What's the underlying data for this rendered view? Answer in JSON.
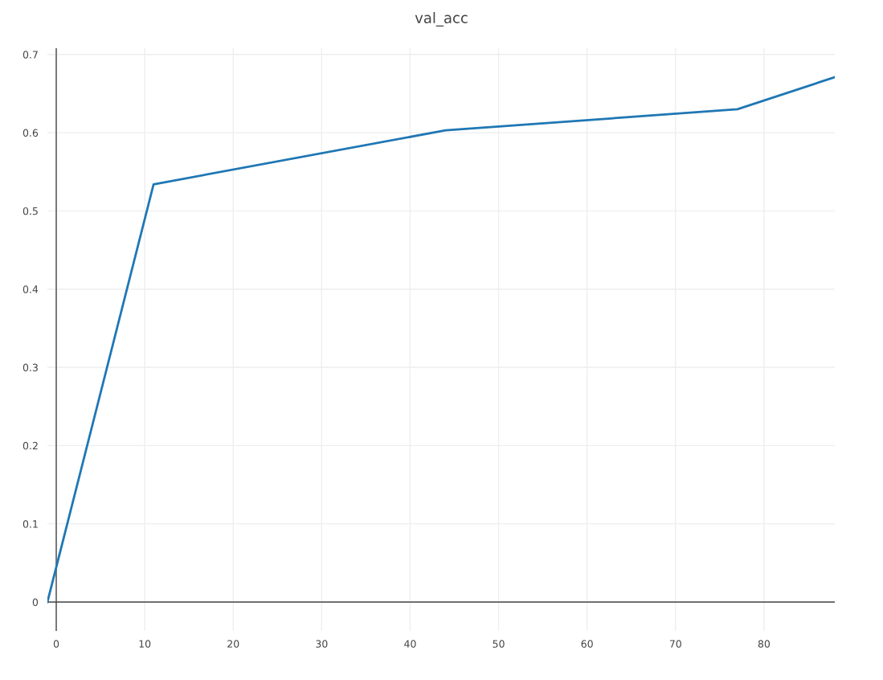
{
  "chart_data": {
    "type": "line",
    "title": "val_acc",
    "x": [
      -1,
      11,
      44,
      77,
      88
    ],
    "series": [
      {
        "color": "#1f77b4",
        "values": [
          0,
          0.534,
          0.603,
          0.63,
          0.671
        ]
      }
    ],
    "xlim": [
      -1,
      88
    ],
    "ylim": [
      -0.037,
      0.708
    ],
    "xticks": [
      0,
      10,
      20,
      30,
      40,
      50,
      60,
      70,
      80
    ],
    "yticks": [
      0,
      0.1,
      0.2,
      0.3,
      0.4,
      0.5,
      0.6,
      0.7
    ],
    "grid": true,
    "marker": "none",
    "line_style": "solid"
  }
}
